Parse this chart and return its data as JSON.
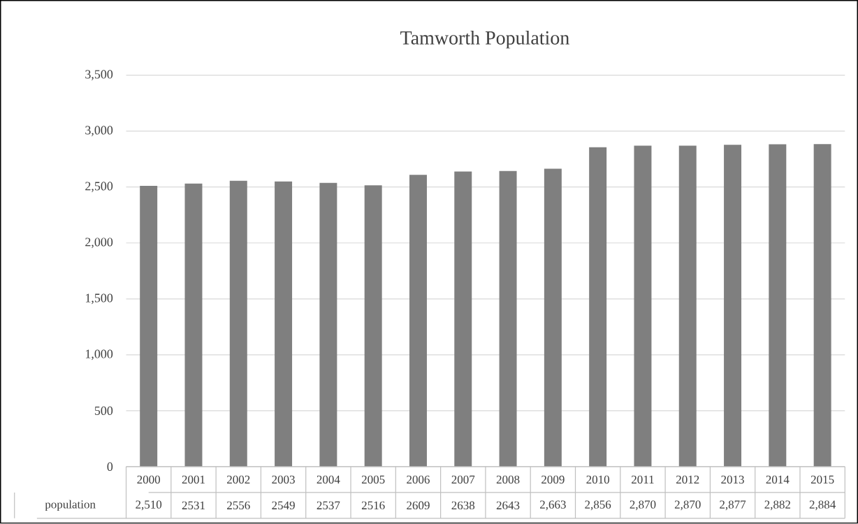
{
  "chart_data": {
    "type": "bar",
    "title": "Tamworth Population",
    "categories": [
      "2000",
      "2001",
      "2002",
      "2003",
      "2004",
      "2005",
      "2006",
      "2007",
      "2008",
      "2009",
      "2010",
      "2011",
      "2012",
      "2013",
      "2014",
      "2015"
    ],
    "series": [
      {
        "name": "population",
        "color": "#7f7f7f",
        "values": [
          2510,
          2531,
          2556,
          2549,
          2537,
          2516,
          2609,
          2638,
          2643,
          2663,
          2856,
          2870,
          2870,
          2877,
          2882,
          2884
        ],
        "value_labels": [
          "2,510",
          "2531",
          "2556",
          "2549",
          "2537",
          "2516",
          "2609",
          "2638",
          "2643",
          "2,663",
          "2,856",
          "2,870",
          "2,870",
          "2,877",
          "2,882",
          "2,884"
        ]
      }
    ],
    "ylim": [
      0,
      3500
    ],
    "yticks": [
      {
        "value": 0,
        "label": "0"
      },
      {
        "value": 500,
        "label": "500"
      },
      {
        "value": 1000,
        "label": "1,000"
      },
      {
        "value": 1500,
        "label": "1,500"
      },
      {
        "value": 2000,
        "label": "2,000"
      },
      {
        "value": 2500,
        "label": "2,500"
      },
      {
        "value": 3000,
        "label": "3,000"
      },
      {
        "value": 3500,
        "label": "3,500"
      }
    ],
    "grid": "y",
    "legend": false
  }
}
